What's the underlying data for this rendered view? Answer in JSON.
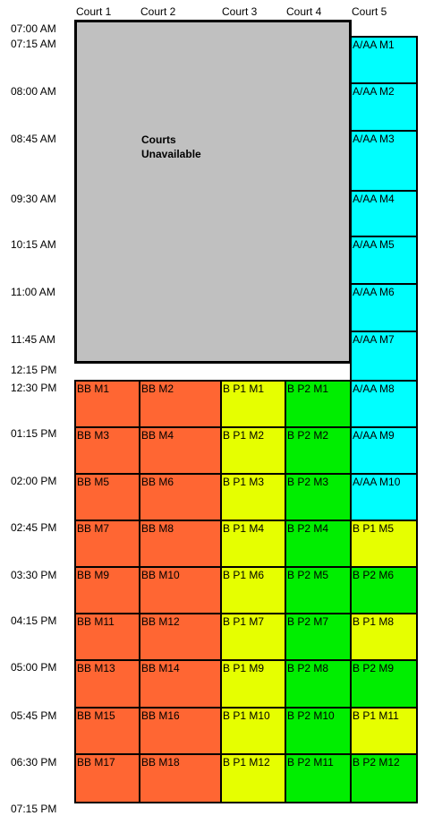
{
  "courts": [
    "Court 1",
    "Court 2",
    "Court 3",
    "Court 4",
    "Court 5"
  ],
  "times": [
    "07:00 AM",
    "07:15 AM",
    "08:00 AM",
    "08:45 AM",
    "09:30 AM",
    "10:15 AM",
    "11:00 AM",
    "11:45 AM",
    "12:15 PM",
    "12:30 PM",
    "01:15 PM",
    "02:00 PM",
    "02:45 PM",
    "03:30 PM",
    "04:15 PM",
    "05:00 PM",
    "05:45 PM",
    "06:30 PM",
    "07:15 PM"
  ],
  "unavailable_label": "Courts Unavailable",
  "colors": {
    "unavailable": "#c0c0c0",
    "bb": "#ff6633",
    "bp1": "#e6ff00",
    "bp2": "#00ee00",
    "aaa": "#00ffff",
    "border": "#000000"
  },
  "matches": {
    "court1": [
      "BB M1",
      "BB M3",
      "BB M5",
      "BB M7",
      "BB M9",
      "BB M11",
      "BB M13",
      "BB M15",
      "BB M17"
    ],
    "court2": [
      "BB M2",
      "BB M4",
      "BB M6",
      "BB M8",
      "BB M10",
      "BB M12",
      "BB M14",
      "BB M16",
      "BB M18"
    ],
    "court3": [
      "B P1 M1",
      "B P1 M2",
      "B P1 M3",
      "B P1 M4",
      "B P1 M6",
      "B P1 M7",
      "B P1 M9",
      "B P1 M10",
      "B P1 M12"
    ],
    "court4": [
      "B P2 M1",
      "B P2 M2",
      "B P2 M3",
      "B P2 M4",
      "B P2 M5",
      "B P2 M7",
      "B P2 M8",
      "B P2 M10",
      "B P2 M11"
    ],
    "court5": [
      {
        "label": "A/AA M1",
        "group": "aaa"
      },
      {
        "label": "A/AA M2",
        "group": "aaa"
      },
      {
        "label": "A/AA M3",
        "group": "aaa"
      },
      {
        "label": "A/AA M4",
        "group": "aaa"
      },
      {
        "label": "A/AA M5",
        "group": "aaa"
      },
      {
        "label": "A/AA M6",
        "group": "aaa"
      },
      {
        "label": "A/AA M7",
        "group": "aaa"
      },
      {
        "label": "A/AA M8",
        "group": "aaa"
      },
      {
        "label": "A/AA M9",
        "group": "aaa"
      },
      {
        "label": "A/AA M10",
        "group": "aaa"
      },
      {
        "label": "B P1 M5",
        "group": "bp1"
      },
      {
        "label": "B P2 M6",
        "group": "bp2"
      },
      {
        "label": "B P1 M8",
        "group": "bp1"
      },
      {
        "label": "B P2 M9",
        "group": "bp2"
      },
      {
        "label": "B P1 M11",
        "group": "bp1"
      },
      {
        "label": "B P2 M12",
        "group": "bp2"
      }
    ]
  }
}
